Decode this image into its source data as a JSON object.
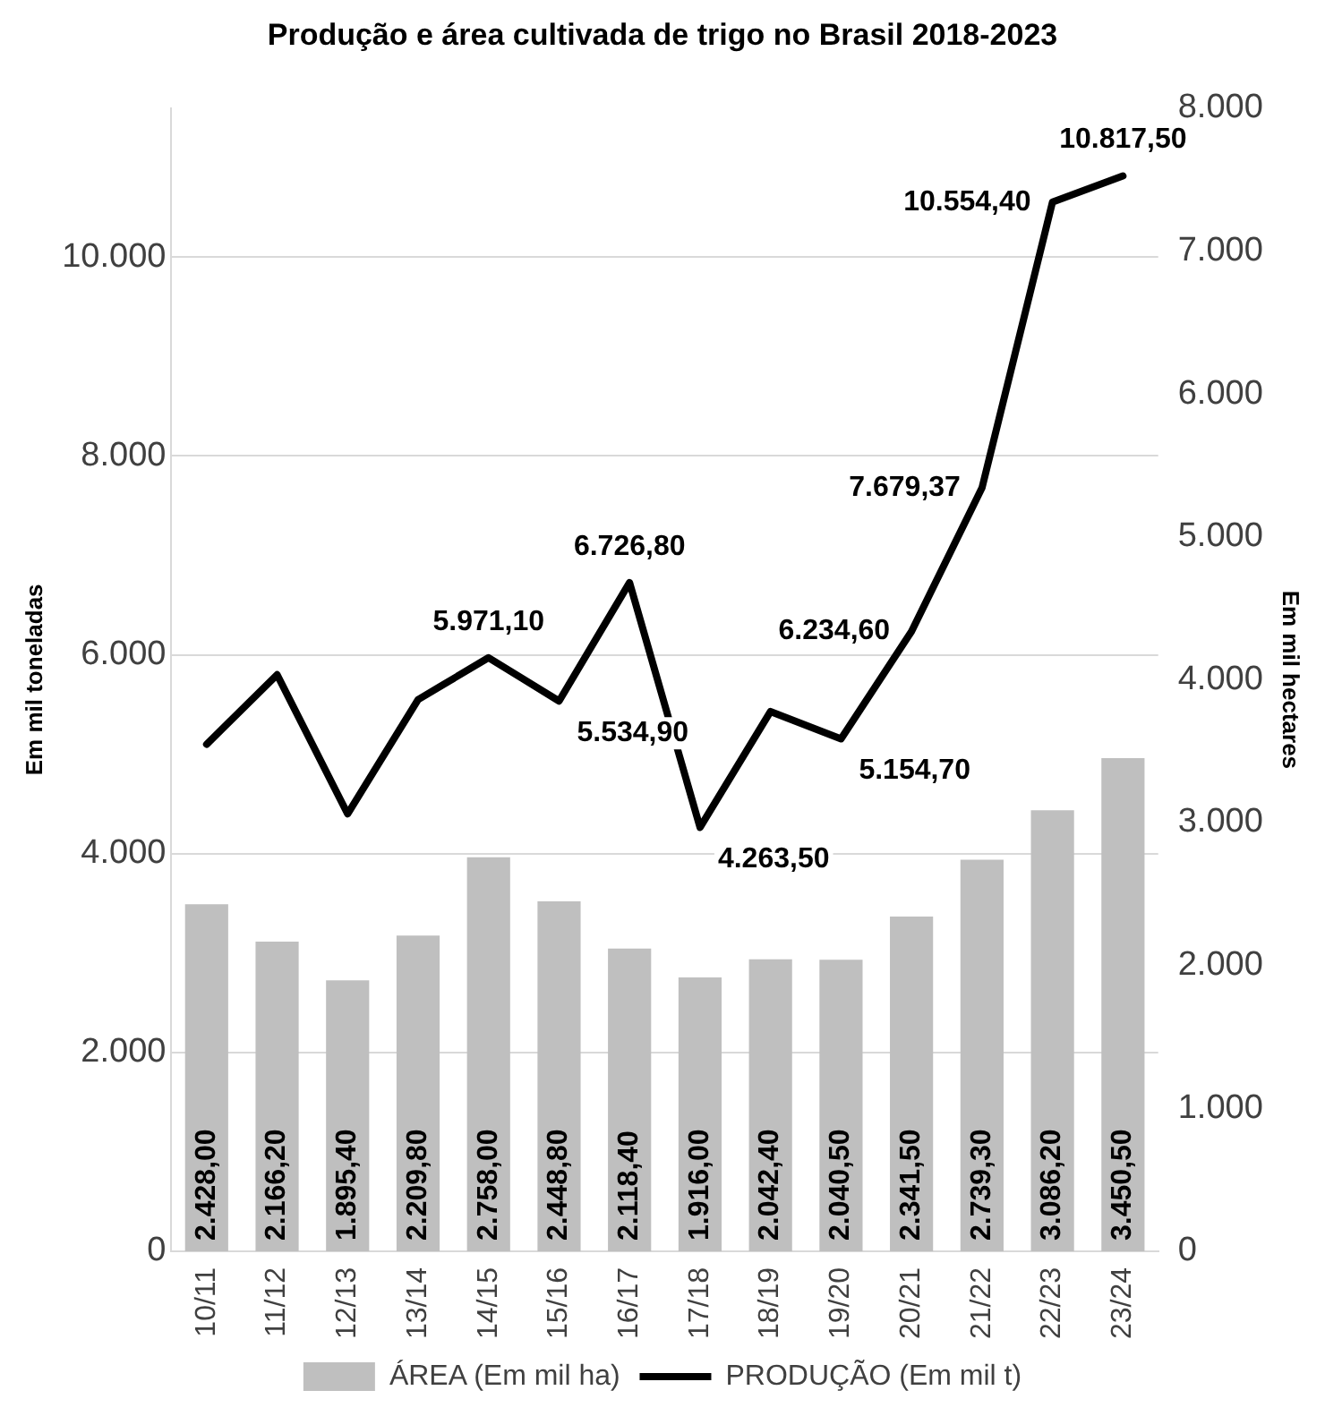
{
  "chart_data": {
    "type": "bar",
    "title": "Produção e área cultivada de trigo no Brasil 2018-2023",
    "ylabel": "Em mil toneladas",
    "y2label": "Em mil hectares",
    "categories": [
      "10/11",
      "11/12",
      "12/13",
      "13/14",
      "14/15",
      "15/16",
      "16/17",
      "17/18",
      "18/19",
      "19/20",
      "20/21",
      "21/22",
      "22/23",
      "23/24"
    ],
    "series": [
      {
        "name": "ÁREA (Em mil ha)",
        "axis": "y2",
        "color": "#bfbfbf",
        "values": [
          2428.0,
          2166.2,
          1895.4,
          2209.8,
          2758.0,
          2448.8,
          2118.4,
          1916.0,
          2042.4,
          2040.5,
          2341.5,
          2739.3,
          3086.2,
          3450.5
        ],
        "value_labels": [
          "2.428,00",
          "2.166,20",
          "1.895,40",
          "2.209,80",
          "2.758,00",
          "2.448,80",
          "2.118,40",
          "1.916,00",
          "2.042,40",
          "2.040,50",
          "2.341,50",
          "2.739,30",
          "3.086,20",
          "3.450,50"
        ]
      },
      {
        "name": "PRODUÇÃO (Em mil t)",
        "type": "line",
        "color": "#000000",
        "values": [
          5100,
          5800,
          4400,
          5550,
          5971.1,
          5534.9,
          6726.8,
          4263.5,
          5430,
          5154.7,
          6234.6,
          7679.37,
          10554.4,
          10817.5
        ],
        "value_labels": [
          null,
          null,
          null,
          null,
          "5.971,10",
          "5.534,90",
          "6.726,80",
          "4.263,50",
          null,
          "5.154,70",
          "6.234,60",
          "7.679,37",
          "10.554,40",
          "10.817,50"
        ]
      }
    ],
    "ylim": [
      0,
      11500
    ],
    "yticks": [
      0,
      {
        "value": 2000,
        "label": "2.000"
      },
      {
        "value": 4000,
        "label": "4.000"
      },
      {
        "value": 6000,
        "label": "6.000"
      },
      {
        "value": 8000,
        "label": "8.000"
      },
      {
        "value": 10000,
        "label": "10.000"
      }
    ],
    "y2lim": [
      0,
      8000
    ],
    "y2ticks": [
      0,
      {
        "value": 1000,
        "label": "1.000"
      },
      {
        "value": 2000,
        "label": "2.000"
      },
      {
        "value": 3000,
        "label": "3.000"
      },
      {
        "value": 4000,
        "label": "4.000"
      },
      {
        "value": 5000,
        "label": "5.000"
      },
      {
        "value": 6000,
        "label": "6.000"
      },
      {
        "value": 7000,
        "label": "7.000"
      },
      {
        "value": 8000,
        "label": "8.000"
      }
    ],
    "grid": "y",
    "legend": "bottom",
    "marker": "none",
    "line_style": "solid"
  }
}
